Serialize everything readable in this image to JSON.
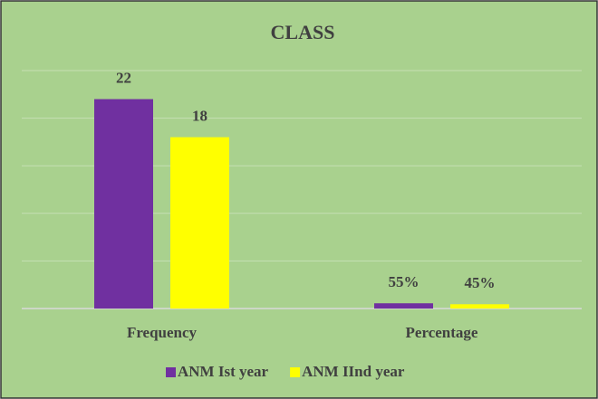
{
  "chart_data": {
    "type": "bar",
    "title": "CLASS",
    "categories": [
      "Frequency",
      "Percentage"
    ],
    "series": [
      {
        "name": "ANM Ist year",
        "color": "#7030a0",
        "values": [
          22,
          0.55
        ],
        "value_labels": [
          "22",
          "55%"
        ]
      },
      {
        "name": "ANM IInd year",
        "color": "#ffff00",
        "values": [
          18,
          0.45
        ],
        "value_labels": [
          "18",
          "45%"
        ]
      }
    ],
    "ylim": [
      0,
      25
    ],
    "yticks": [
      0,
      5,
      10,
      15,
      20,
      25
    ],
    "grid": true,
    "legend": "bottom"
  }
}
